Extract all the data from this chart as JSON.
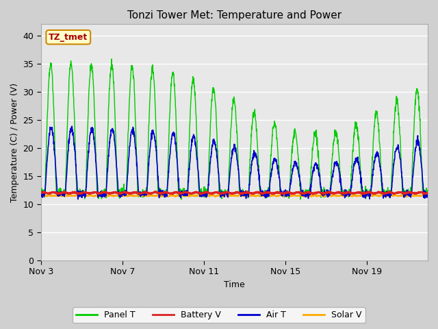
{
  "title": "Tonzi Tower Met: Temperature and Power",
  "xlabel": "Time",
  "ylabel": "Temperature (C) / Power (V)",
  "ylim": [
    0,
    42
  ],
  "yticks": [
    0,
    5,
    10,
    15,
    20,
    25,
    30,
    35,
    40
  ],
  "xtick_labels": [
    "Nov 3",
    "Nov 7",
    "Nov 11",
    "Nov 15",
    "Nov 19"
  ],
  "xtick_positions": [
    0,
    4,
    8,
    12,
    16
  ],
  "legend_labels": [
    "Panel T",
    "Battery V",
    "Air T",
    "Solar V"
  ],
  "legend_colors": [
    "#00cc00",
    "#dd2222",
    "#0000cc",
    "#ffaa00"
  ],
  "annotation_text": "TZ_tmet",
  "annotation_bg": "#ffffcc",
  "annotation_border": "#cc8800",
  "annotation_text_color": "#aa0000",
  "panel_t_color": "#00cc00",
  "battery_v_color": "#dd2222",
  "air_t_color": "#0000cc",
  "solar_v_color": "#ffaa00",
  "fig_bg_color": "#d0d0d0",
  "ax_bg_color": "#e8e8e8",
  "n_days": 19,
  "points_per_day": 96,
  "panel_night_base": 12.0,
  "panel_peak_early": 35.0,
  "panel_peak_late": 28.0,
  "air_night_base": 11.8,
  "air_peak_early": 23.5,
  "air_peak_late": 18.0,
  "battery_v_base": 12.0,
  "solar_v_base": 11.5
}
